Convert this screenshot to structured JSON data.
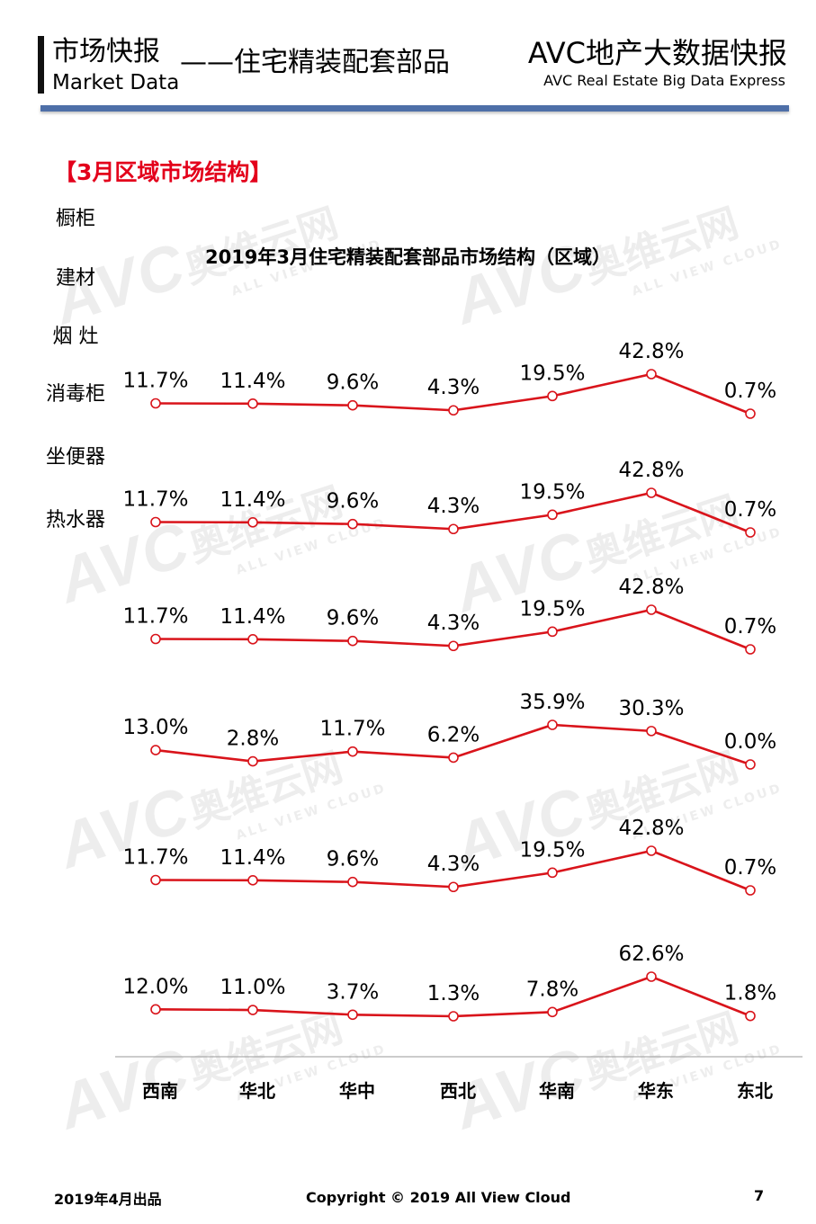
{
  "header": {
    "title_cn": "市场快报",
    "title_en": "Market Data",
    "subject": "——住宅精装配套部品",
    "brand": "AVC地产大数据快报",
    "brand_sub": "AVC  Real Estate Big Data Express",
    "rule_color": "#4e6fa8"
  },
  "section_title": "【3月区域市场结构】",
  "watermark": {
    "logo": "AVC",
    "cn": "奥维云网",
    "en": "ALL VIEW CLOUD"
  },
  "chart_data": {
    "type": "line",
    "title": "2019年3月住宅精装配套部品市场结构（区域）",
    "categories": [
      "西南",
      "华北",
      "华中",
      "西北",
      "华南",
      "华东",
      "东北"
    ],
    "value_unit": "%",
    "line_color": "#d9141b",
    "marker": "hollow-circle",
    "series": [
      {
        "name": "橱柜",
        "values": [
          11.7,
          11.4,
          9.6,
          4.3,
          19.5,
          42.8,
          0.7
        ]
      },
      {
        "name": "建材",
        "values": [
          11.7,
          11.4,
          9.6,
          4.3,
          19.5,
          42.8,
          0.7
        ]
      },
      {
        "name": "烟 灶",
        "values": [
          11.7,
          11.4,
          9.6,
          4.3,
          19.5,
          42.8,
          0.7
        ]
      },
      {
        "name": "消毒柜",
        "values": [
          13.0,
          2.8,
          11.7,
          6.2,
          35.9,
          30.3,
          0.0
        ]
      },
      {
        "name": "坐便器",
        "values": [
          11.7,
          11.4,
          9.6,
          4.3,
          19.5,
          42.8,
          0.7
        ]
      },
      {
        "name": "热水器",
        "values": [
          12.0,
          11.0,
          3.7,
          1.3,
          7.8,
          62.6,
          1.8
        ]
      }
    ],
    "labels": [
      [
        "11.7%",
        "11.4%",
        "9.6%",
        "4.3%",
        "19.5%",
        "42.8%",
        "0.7%"
      ],
      [
        "11.7%",
        "11.4%",
        "9.6%",
        "4.3%",
        "19.5%",
        "42.8%",
        "0.7%"
      ],
      [
        "11.7%",
        "11.4%",
        "9.6%",
        "4.3%",
        "19.5%",
        "42.8%",
        "0.7%"
      ],
      [
        "13.0%",
        "2.8%",
        "11.7%",
        "6.2%",
        "35.9%",
        "30.3%",
        "0.0%"
      ],
      [
        "11.7%",
        "11.4%",
        "9.6%",
        "4.3%",
        "19.5%",
        "42.8%",
        "0.7%"
      ],
      [
        "12.0%",
        "11.0%",
        "3.7%",
        "1.3%",
        "7.8%",
        "62.6%",
        "1.8%"
      ]
    ]
  },
  "footer": {
    "date": "2019年4月出品",
    "copyright": "Copyright © 2019  All View Cloud",
    "page": "7"
  }
}
